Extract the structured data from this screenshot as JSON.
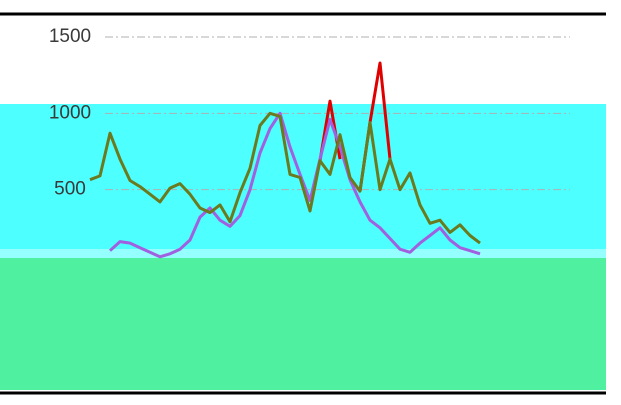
{
  "chart_data": {
    "type": "line",
    "ylim": [
      0,
      1500
    ],
    "yticks": [
      500,
      1000,
      1500
    ],
    "grid": true,
    "series": [
      {
        "color": "#e00000",
        "values": [
          null,
          null,
          null,
          null,
          null,
          null,
          null,
          null,
          null,
          null,
          null,
          null,
          null,
          null,
          null,
          null,
          null,
          null,
          null,
          null,
          null,
          null,
          null,
          690,
          1080,
          700,
          null,
          490,
          940,
          1330,
          700,
          null,
          null,
          null,
          null,
          null,
          null,
          null,
          null,
          null
        ]
      },
      {
        "color": "#a060e0",
        "values": [
          null,
          null,
          100,
          160,
          150,
          120,
          90,
          60,
          80,
          110,
          170,
          320,
          380,
          300,
          260,
          330,
          500,
          740,
          900,
          1000,
          780,
          600,
          430,
          700,
          960,
          780,
          565,
          420,
          300,
          250,
          180,
          110,
          90,
          150,
          200,
          250,
          170,
          120,
          100,
          80
        ]
      },
      {
        "color": "#6b7a1f",
        "values": [
          565,
          590,
          870,
          700,
          560,
          520,
          470,
          420,
          510,
          540,
          470,
          380,
          350,
          400,
          290,
          480,
          640,
          920,
          1000,
          980,
          600,
          580,
          360,
          690,
          600,
          860,
          580,
          490,
          940,
          500,
          700,
          500,
          610,
          400,
          280,
          300,
          220,
          270,
          200,
          150
        ]
      }
    ]
  }
}
